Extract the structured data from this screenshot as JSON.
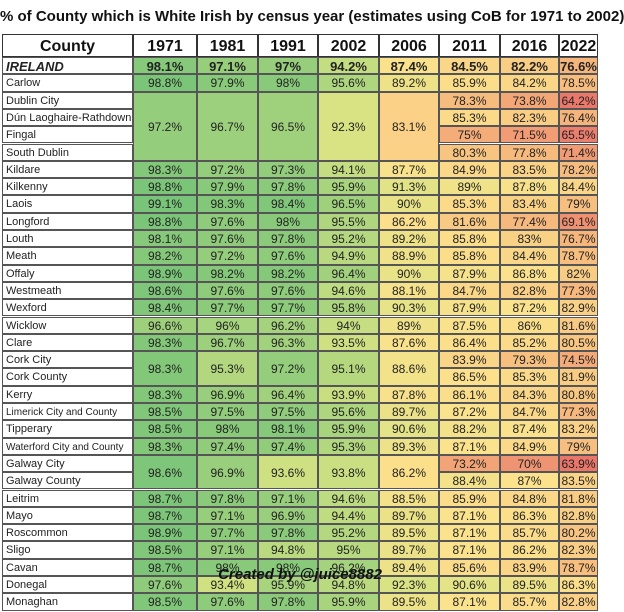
{
  "chart_data": {
    "type": "table",
    "title": "% of County which is White Irish by census year (estimates using CoB for 1971 to 2002)",
    "first_col_header": "County",
    "years": [
      "1971",
      "1981",
      "1991",
      "2002",
      "2006",
      "2011",
      "2016",
      "2022"
    ],
    "color_scale": "green (high) to yellow to red (low)",
    "groups": [
      {
        "names": [
          "IRELAND"
        ],
        "values": [
          [
            98.1,
            97.1,
            97,
            94.2,
            87.4,
            84.5,
            82.2,
            76.6
          ]
        ]
      },
      {
        "names": [
          "Carlow"
        ],
        "values": [
          [
            98.8,
            97.9,
            98.0,
            95.6,
            89.2,
            85.9,
            84.2,
            78.5
          ]
        ]
      },
      {
        "names": [
          "Dublin City",
          "Dún Laoghaire-Rathdown",
          "Fingal",
          "South Dublin"
        ],
        "values": [
          [
            97.2,
            96.7,
            96.5,
            92.3,
            83.1
          ],
          [
            78.3,
            73.8,
            64.2
          ],
          [
            85.3,
            82.3,
            76.4
          ],
          [
            75.0,
            71.5,
            65.5
          ],
          [
            80.3,
            77.8,
            71.4
          ]
        ]
      },
      {
        "names": [
          "Kildare"
        ],
        "values": [
          [
            98.3,
            97.2,
            97.3,
            94.1,
            87.7,
            84.9,
            83.5,
            78.2
          ]
        ]
      },
      {
        "names": [
          "Kilkenny"
        ],
        "values": [
          [
            98.8,
            97.9,
            97.8,
            95.9,
            91.3,
            89.0,
            87.8,
            84.4
          ]
        ]
      },
      {
        "names": [
          "Laois"
        ],
        "values": [
          [
            99.1,
            98.3,
            98.4,
            96.5,
            90.0,
            85.3,
            83.4,
            79.0
          ]
        ]
      },
      {
        "names": [
          "Longford"
        ],
        "values": [
          [
            98.8,
            97.6,
            98.0,
            95.5,
            86.2,
            81.6,
            77.4,
            69.1
          ]
        ]
      },
      {
        "names": [
          "Louth"
        ],
        "values": [
          [
            98.1,
            97.6,
            97.8,
            95.2,
            89.2,
            85.8,
            83.0,
            76.7
          ]
        ]
      },
      {
        "names": [
          "Meath"
        ],
        "values": [
          [
            98.2,
            97.2,
            97.6,
            94.9,
            88.9,
            85.8,
            84.4,
            78.7
          ]
        ]
      },
      {
        "names": [
          "Offaly"
        ],
        "values": [
          [
            98.9,
            98.2,
            98.2,
            96.4,
            90.0,
            87.9,
            86.8,
            82.0
          ]
        ]
      },
      {
        "names": [
          "Westmeath"
        ],
        "values": [
          [
            98.6,
            97.6,
            97.6,
            94.6,
            88.1,
            84.7,
            82.8,
            77.3
          ]
        ]
      },
      {
        "names": [
          "Wexford"
        ],
        "values": [
          [
            98.4,
            97.7,
            97.7,
            95.8,
            90.3,
            87.9,
            87.2,
            82.9
          ]
        ]
      },
      {
        "names": [
          "Wicklow"
        ],
        "values": [
          [
            96.6,
            96.0,
            96.2,
            94.0,
            89.0,
            87.5,
            86.0,
            81.6
          ]
        ]
      },
      {
        "names": [
          "Clare"
        ],
        "values": [
          [
            98.3,
            96.7,
            96.3,
            93.5,
            87.6,
            86.4,
            85.2,
            80.5
          ]
        ]
      },
      {
        "names": [
          "Cork City",
          "Cork County"
        ],
        "values": [
          [
            98.3,
            95.3,
            97.2,
            95.1,
            88.6
          ],
          [
            83.9,
            79.3,
            74.5
          ],
          [
            86.5,
            85.3,
            81.9
          ]
        ]
      },
      {
        "names": [
          "Kerry"
        ],
        "values": [
          [
            98.3,
            96.9,
            96.4,
            93.9,
            87.8,
            86.1,
            84.3,
            80.8
          ]
        ]
      },
      {
        "names": [
          "Limerick City and County"
        ],
        "values": [
          [
            98.5,
            97.5,
            97.5,
            95.6,
            89.7,
            87.2,
            84.7,
            77.3
          ]
        ]
      },
      {
        "names": [
          "Tipperary"
        ],
        "values": [
          [
            98.5,
            98.0,
            98.1,
            95.9,
            90.6,
            88.2,
            87.4,
            83.2
          ]
        ]
      },
      {
        "names": [
          "Waterford City and County"
        ],
        "values": [
          [
            98.3,
            97.4,
            97.4,
            95.3,
            89.3,
            87.1,
            84.9,
            79.0
          ]
        ]
      },
      {
        "names": [
          "Galway City",
          "Galway County"
        ],
        "values": [
          [
            98.6,
            96.9,
            93.6,
            93.8,
            86.2
          ],
          [
            73.2,
            70.0,
            63.9
          ],
          [
            88.4,
            87.0,
            83.5
          ]
        ]
      },
      {
        "names": [
          "Leitrim"
        ],
        "values": [
          [
            98.7,
            97.8,
            97.1,
            94.6,
            88.5,
            85.9,
            84.8,
            81.8
          ]
        ]
      },
      {
        "names": [
          "Mayo"
        ],
        "values": [
          [
            98.7,
            97.1,
            96.9,
            94.4,
            89.7,
            87.1,
            86.3,
            82.8
          ]
        ]
      },
      {
        "names": [
          "Roscommon"
        ],
        "values": [
          [
            98.9,
            97.7,
            97.8,
            95.2,
            89.5,
            87.1,
            85.7,
            80.2
          ]
        ]
      },
      {
        "names": [
          "Sligo"
        ],
        "values": [
          [
            98.5,
            97.1,
            94.8,
            95.0,
            89.7,
            87.1,
            86.2,
            82.3
          ]
        ]
      },
      {
        "names": [
          "Cavan"
        ],
        "values": [
          [
            98.7,
            98.0,
            98.0,
            96.2,
            89.4,
            85.6,
            83.9,
            78.7
          ]
        ]
      },
      {
        "names": [
          "Donegal"
        ],
        "values": [
          [
            97.6,
            93.4,
            95.9,
            94.8,
            92.3,
            90.6,
            89.5,
            86.3
          ]
        ]
      },
      {
        "names": [
          "Monaghan"
        ],
        "values": [
          [
            98.5,
            97.6,
            97.8,
            95.9,
            89.5,
            87.1,
            85.7,
            82.8
          ]
        ]
      }
    ]
  },
  "footer": "Created by @juice8882"
}
